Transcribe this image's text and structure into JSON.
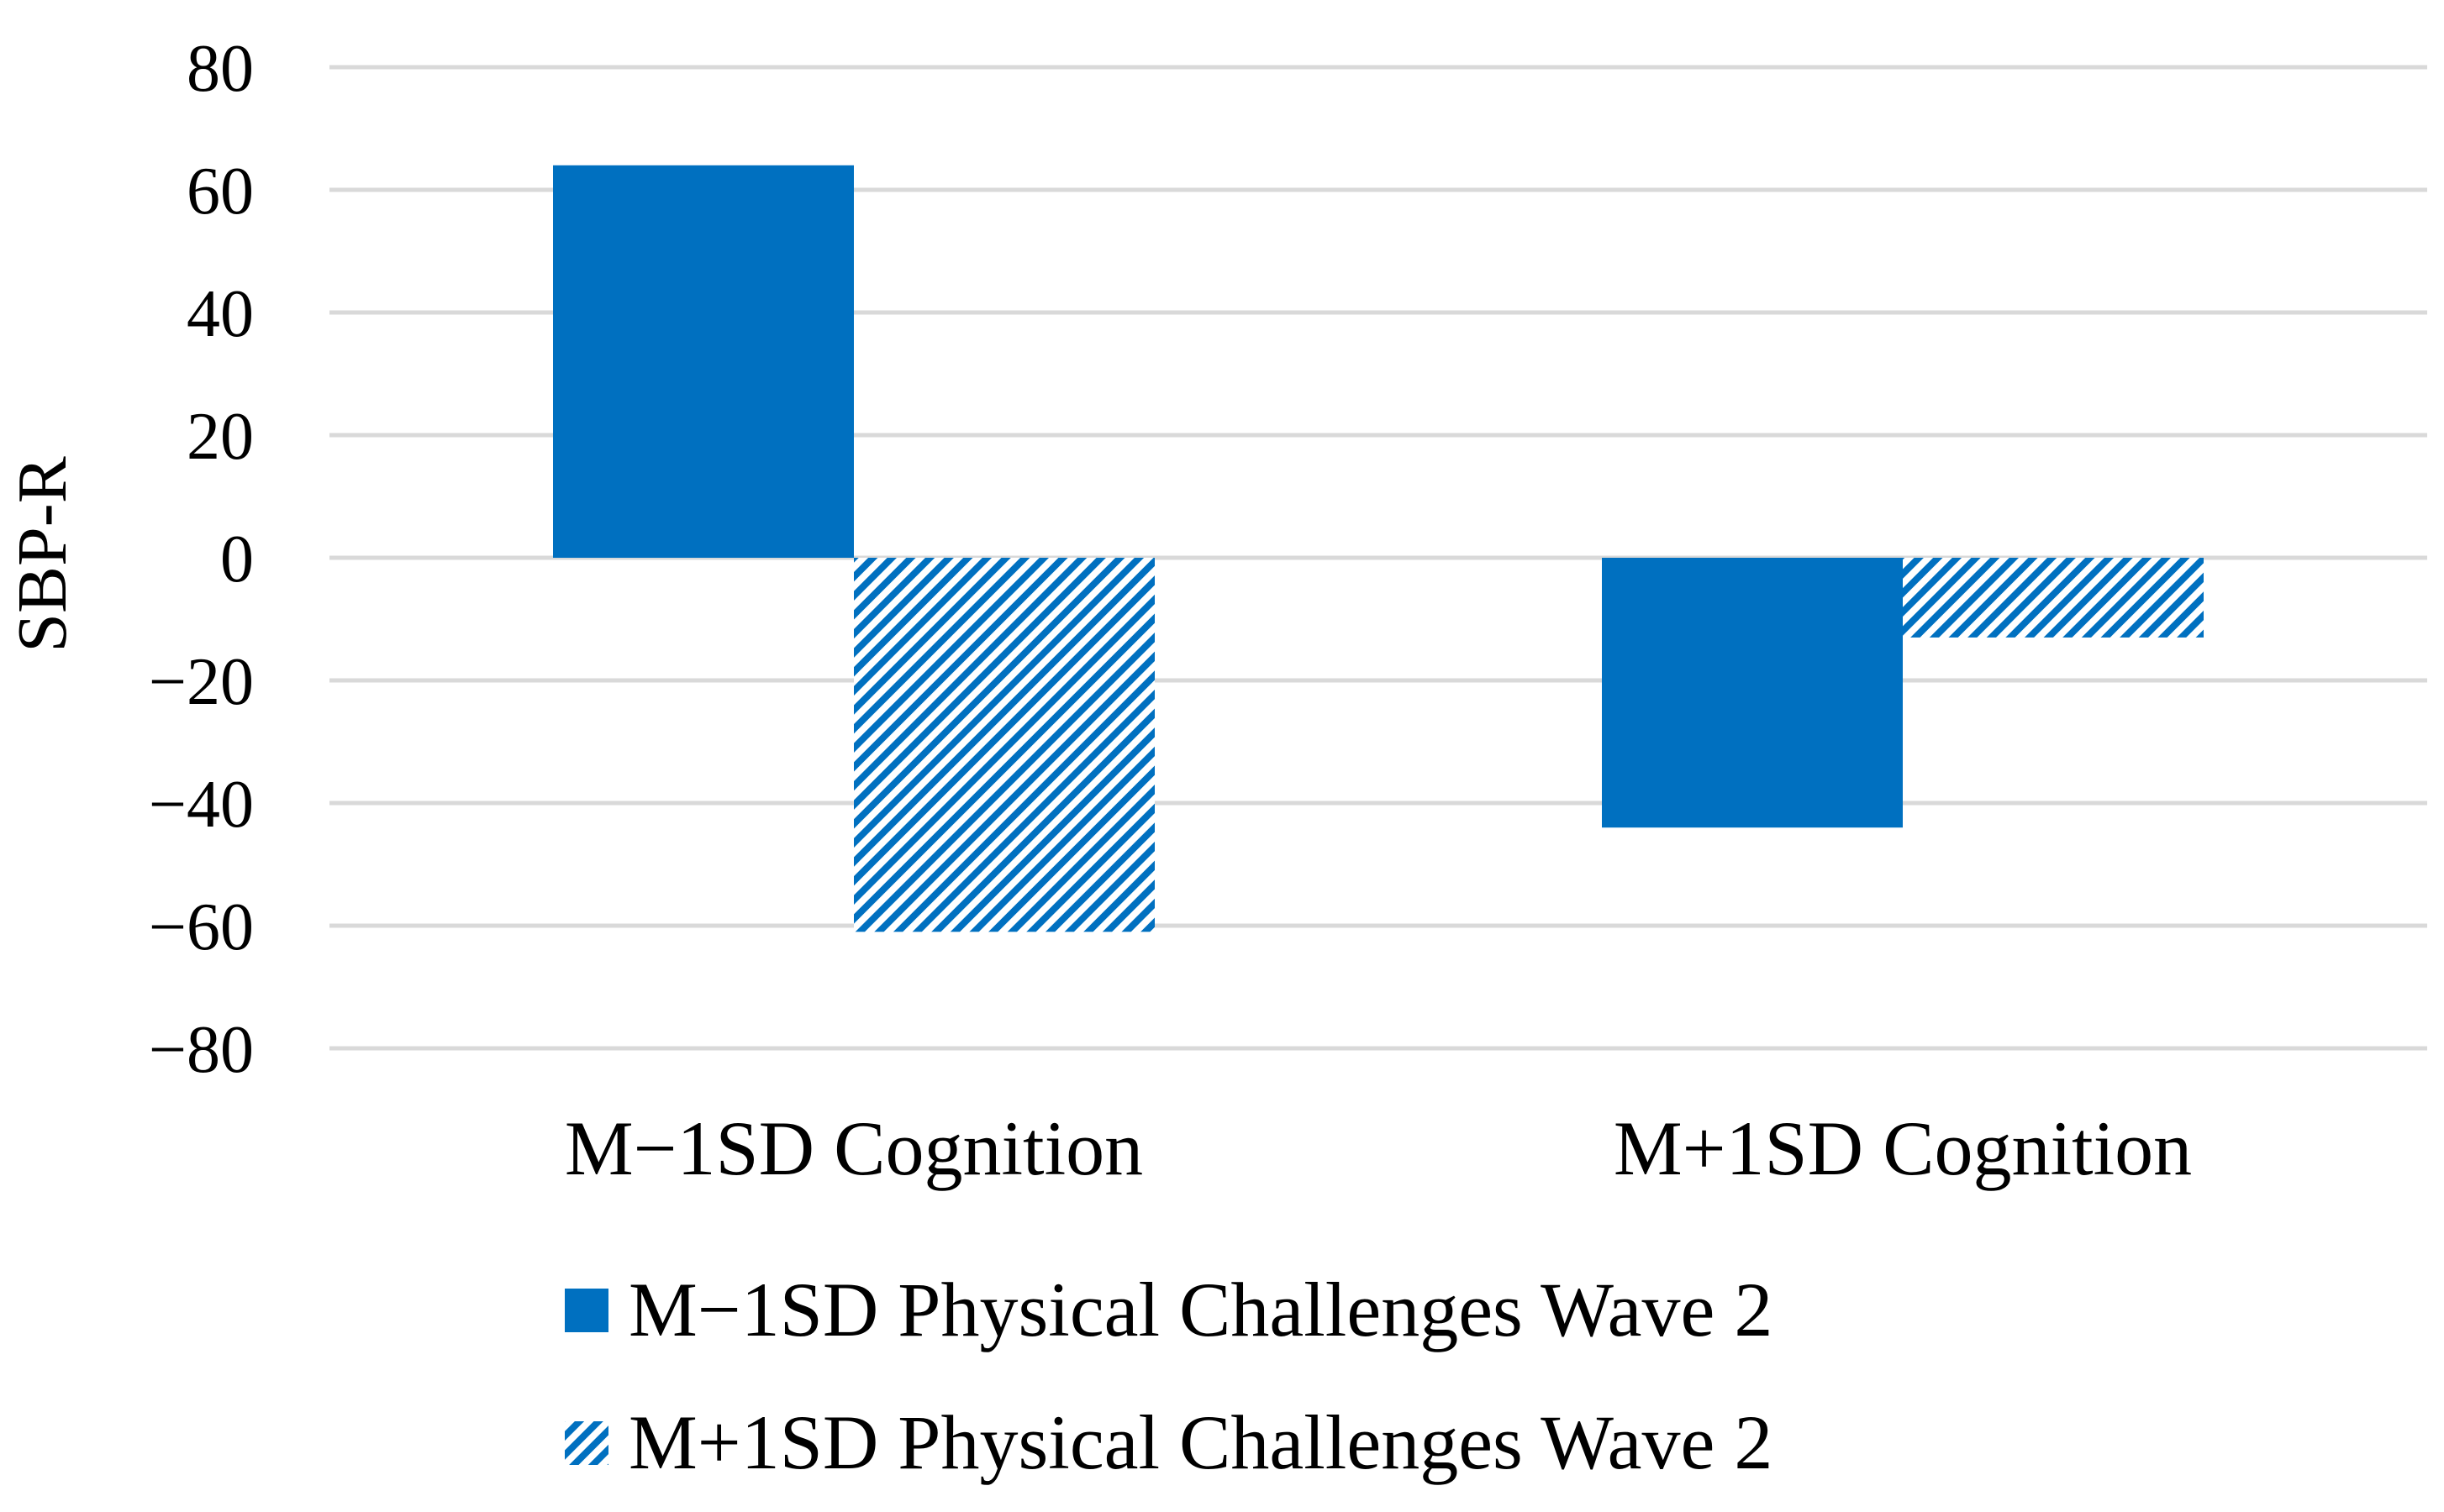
{
  "chart_data": {
    "type": "bar",
    "title": "",
    "xlabel": "",
    "ylabel": "SBP-R",
    "ylim": [
      -80,
      80
    ],
    "yticks": [
      80,
      60,
      40,
      20,
      0,
      -20,
      -40,
      -60,
      -80
    ],
    "ytick_labels": [
      "80",
      "60",
      "40",
      "20",
      "0",
      "−20",
      "−40",
      "−60",
      "−80"
    ],
    "grid": true,
    "legend_position": "bottom",
    "categories": [
      "M−1SD Cognition",
      "M+1SD Cognition"
    ],
    "series": [
      {
        "name": "M−1SD Physical Challenges Wave 2",
        "values": [
          64,
          -44
        ],
        "color": "#0070c0",
        "pattern": "solid"
      },
      {
        "name": "M+1SD Physical Challenges Wave 2",
        "values": [
          -61,
          -13
        ],
        "color": "#0070c0",
        "pattern": "diagonal-hatch"
      }
    ]
  }
}
